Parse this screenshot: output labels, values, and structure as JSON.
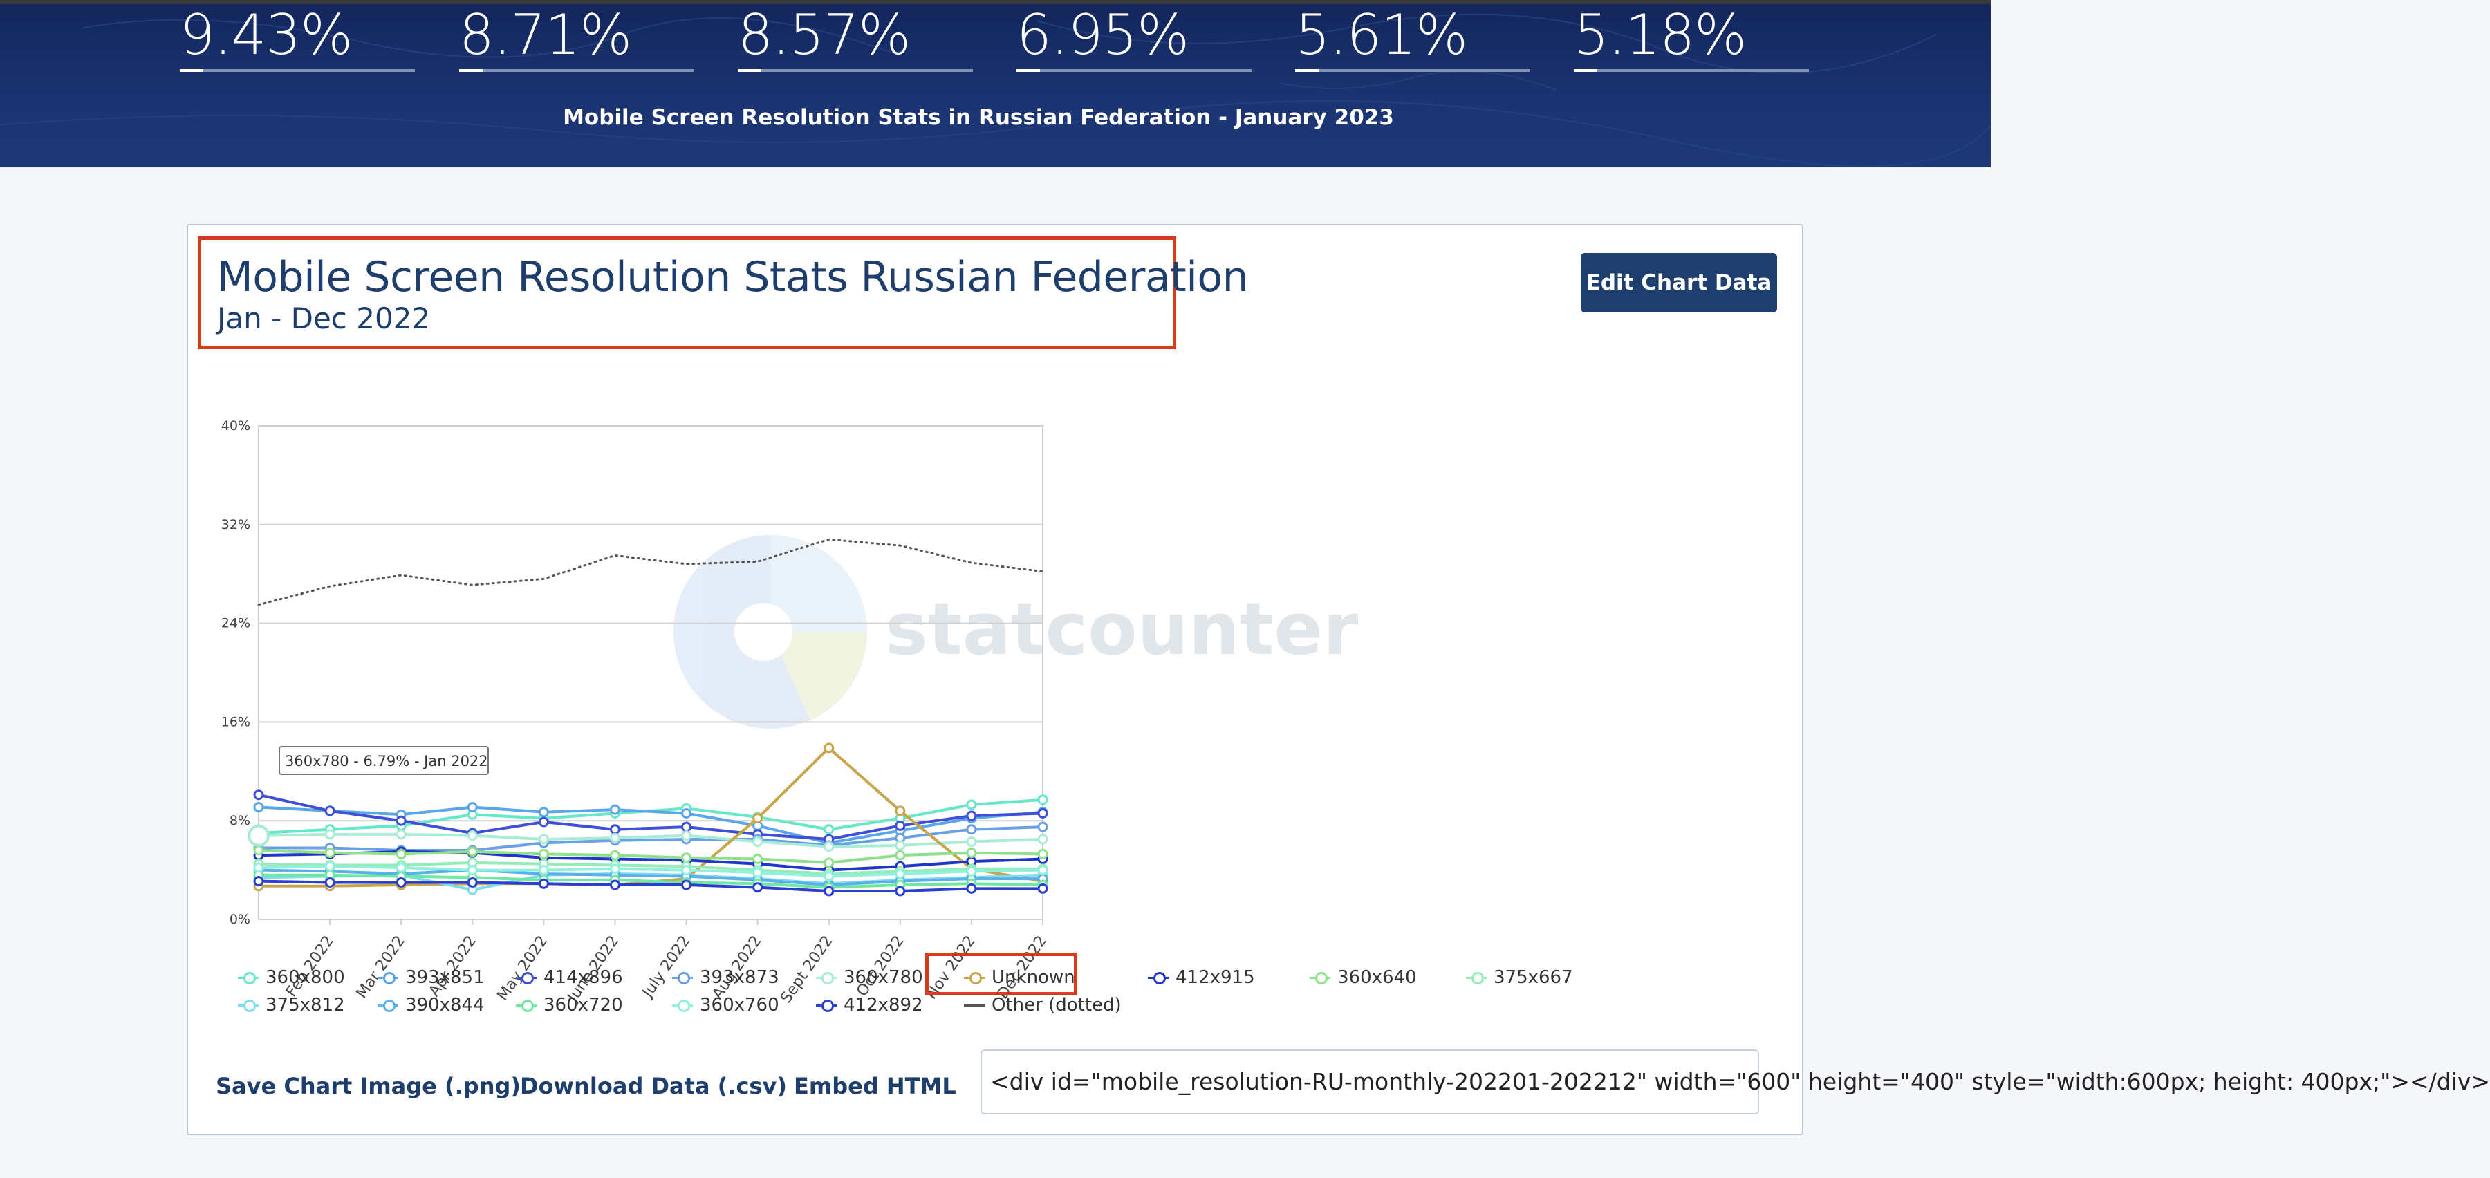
{
  "header": {
    "stats": [
      {
        "value": "9.43%",
        "fill": 0.1
      },
      {
        "value": "8.71%",
        "fill": 0.1
      },
      {
        "value": "8.57%",
        "fill": 0.1
      },
      {
        "value": "6.95%",
        "fill": 0.1
      },
      {
        "value": "5.61%",
        "fill": 0.1
      },
      {
        "value": "5.18%",
        "fill": 0.1
      }
    ],
    "subtitle": "Mobile Screen Resolution Stats in Russian Federation - January 2023"
  },
  "card": {
    "edit_button": "Edit Chart Data",
    "watermark": "statcounter",
    "tooltip": "360x780 - 6.79% - Jan 2022",
    "links": {
      "save": "Save Chart Image (.png)",
      "download": "Download Data (.csv)",
      "embed": "Embed HTML"
    },
    "embed_code": "<div id=\"mobile_resolution-RU-monthly-202201-202212\" width=\"600\" height=\"400\" style=\"width:600px; height: 400px;\"></div>"
  },
  "colors": {
    "header_bg": "#1b3472",
    "title_text": "#1e3f6e",
    "button_bg": "#1e3f6e",
    "highlight_box": "#d63a1f"
  },
  "chart_data": {
    "type": "line",
    "title": "Mobile Screen Resolution Stats Russian Federation",
    "subtitle": "Jan - Dec 2022",
    "x": [
      "Jan 2022",
      "Feb 2022",
      "Mar 2022",
      "Apr 2022",
      "May 2022",
      "June 2022",
      "July 2022",
      "Aug 2022",
      "Sept 2022",
      "Oct 2022",
      "Nov 2022",
      "Dec 2022"
    ],
    "x_tick_labels": [
      "Feb 2022",
      "Mar 2022",
      "Apr 2022",
      "May 2022",
      "June 2022",
      "July 2022",
      "Aug 2022",
      "Sept 2022",
      "Oct 2022",
      "Nov 2022",
      "Dec 2022"
    ],
    "y_ticks": [
      "0%",
      "8%",
      "16%",
      "24%",
      "32%",
      "40%"
    ],
    "ylim": [
      0,
      40
    ],
    "grid": true,
    "legend_position": "bottom",
    "series": [
      {
        "name": "360x800",
        "color": "#66e8c8",
        "values": [
          7.0,
          7.3,
          7.6,
          8.5,
          8.2,
          8.6,
          9.0,
          8.3,
          7.3,
          8.2,
          9.3,
          9.7
        ]
      },
      {
        "name": "393x851",
        "color": "#5aa6e8",
        "values": [
          9.1,
          8.8,
          8.5,
          9.1,
          8.7,
          8.9,
          8.6,
          7.6,
          6.2,
          7.2,
          8.2,
          8.7
        ]
      },
      {
        "name": "414x896",
        "color": "#3f4fd8",
        "values": [
          10.1,
          8.8,
          8.0,
          7.0,
          7.9,
          7.3,
          7.5,
          6.9,
          6.5,
          7.6,
          8.4,
          8.6
        ]
      },
      {
        "name": "393x873",
        "color": "#6aa0e8",
        "values": [
          5.8,
          5.8,
          5.6,
          5.6,
          6.2,
          6.4,
          6.5,
          6.5,
          6.0,
          6.6,
          7.3,
          7.5
        ]
      },
      {
        "name": "360x780",
        "color": "#a8ecd8",
        "values": [
          6.79,
          6.9,
          6.9,
          6.8,
          6.5,
          6.6,
          6.8,
          6.3,
          5.9,
          6.0,
          6.3,
          6.5
        ]
      },
      {
        "name": "Unknown",
        "color": "#c9a54c",
        "values": [
          2.7,
          2.7,
          2.8,
          2.9,
          2.9,
          2.8,
          3.3,
          8.2,
          13.9,
          8.8,
          4.1,
          3.1
        ]
      },
      {
        "name": "412x915",
        "color": "#2036c8",
        "values": [
          5.2,
          5.3,
          5.5,
          5.4,
          5.0,
          4.9,
          4.8,
          4.5,
          4.0,
          4.3,
          4.7,
          4.9
        ]
      },
      {
        "name": "360x640",
        "color": "#8ee08a",
        "values": [
          5.6,
          5.4,
          5.3,
          5.5,
          5.3,
          5.2,
          5.0,
          4.9,
          4.6,
          5.2,
          5.4,
          5.3
        ]
      },
      {
        "name": "375x667",
        "color": "#96ecb8",
        "values": [
          4.5,
          4.4,
          4.4,
          4.6,
          4.5,
          4.4,
          4.3,
          4.0,
          3.7,
          3.9,
          4.1,
          4.1
        ]
      },
      {
        "name": "375x812",
        "color": "#7fdcec",
        "values": [
          3.4,
          3.5,
          3.6,
          2.4,
          3.6,
          3.7,
          3.6,
          3.3,
          2.9,
          3.2,
          3.4,
          3.6
        ]
      },
      {
        "name": "390x844",
        "color": "#58b0ec",
        "values": [
          4.0,
          3.9,
          3.7,
          4.0,
          3.7,
          3.6,
          3.5,
          3.2,
          2.8,
          3.1,
          3.3,
          3.3
        ]
      },
      {
        "name": "360x720",
        "color": "#6ee8a0",
        "values": [
          3.6,
          3.6,
          3.5,
          3.4,
          3.2,
          3.2,
          3.0,
          2.9,
          2.6,
          2.8,
          2.9,
          2.8
        ]
      },
      {
        "name": "360x760",
        "color": "#8ff0dc",
        "values": [
          4.2,
          4.3,
          4.2,
          4.0,
          4.0,
          4.1,
          4.0,
          3.8,
          3.5,
          3.7,
          3.9,
          4.0
        ]
      },
      {
        "name": "412x892",
        "color": "#2a3fd0",
        "values": [
          3.1,
          3.0,
          3.0,
          3.0,
          2.9,
          2.8,
          2.8,
          2.6,
          2.3,
          2.3,
          2.5,
          2.5
        ]
      },
      {
        "name": "Other (dotted)",
        "color": "#555555",
        "dotted": true,
        "values": [
          25.5,
          27.0,
          27.9,
          27.1,
          27.6,
          29.5,
          28.8,
          29.0,
          30.8,
          30.3,
          28.9,
          28.2
        ]
      }
    ]
  }
}
